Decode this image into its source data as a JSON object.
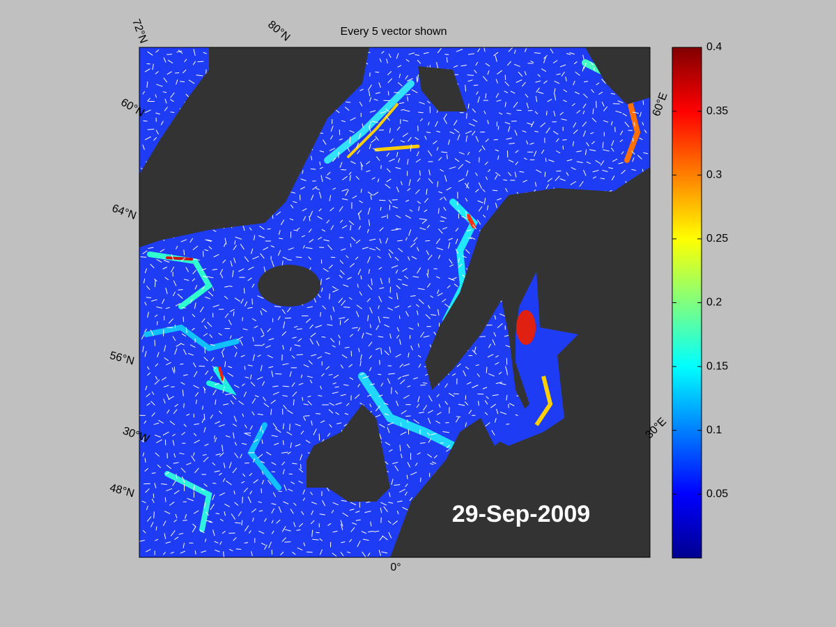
{
  "title": "Every 5 vector shown",
  "date_label": "29-Sep-2009",
  "graticule_labels": [
    "72°N",
    "80°N",
    "60°N",
    "64°N",
    "56°N",
    "30°W",
    "48°N",
    "0°",
    "60°E",
    "30°E"
  ],
  "colorbar": {
    "lim": [
      0,
      0.4
    ],
    "ticks": [
      0.05,
      0.1,
      0.15,
      0.2,
      0.25,
      0.3,
      0.35,
      0.4
    ]
  }
}
